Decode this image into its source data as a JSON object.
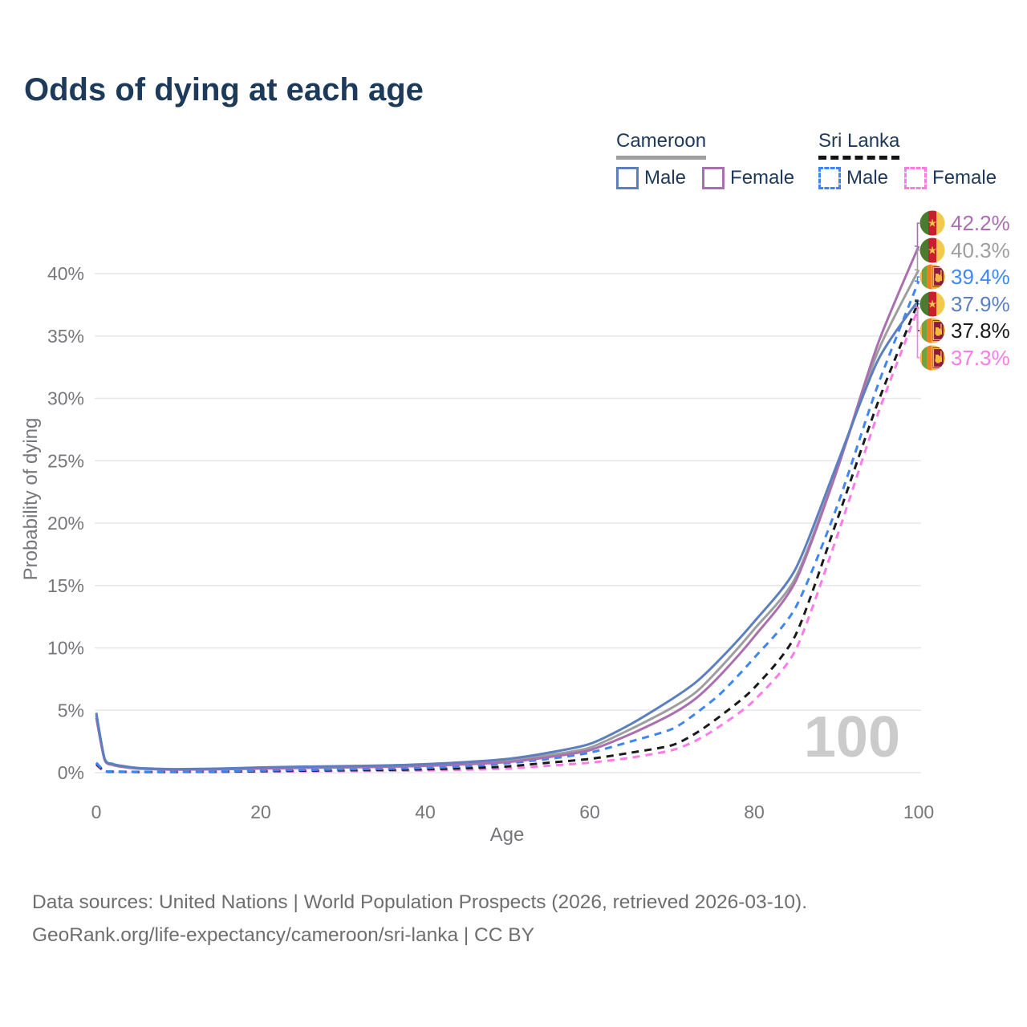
{
  "header": {
    "title": "Odds of dying at each age"
  },
  "legend": {
    "cameroon": {
      "title": "Cameroon",
      "male_label": "Male",
      "female_label": "Female"
    },
    "sri_lanka": {
      "title": "Sri Lanka",
      "male_label": "Male",
      "female_label": "Female"
    }
  },
  "colors": {
    "cameroon_male": "#5b7fbf",
    "cameroon_female": "#a96fae",
    "cameroon_all": "#9e9e9e",
    "sri_lanka_male": "#3f86f5",
    "sri_lanka_female": "#fb7ce6",
    "sri_lanka_all": "#1a1a1a",
    "title_navy": "#1e3a5a",
    "gridline": "#e7e7e9",
    "watermark_gray": "#cbcbcb"
  },
  "chart_data": {
    "type": "line",
    "title": "Odds of dying at each age",
    "xlabel": "Age",
    "ylabel": "Probability of dying",
    "xlim": [
      0,
      100
    ],
    "ylim": [
      0,
      42.5
    ],
    "grid": "horizontal-only",
    "legend_position": "top-right",
    "watermark": "100",
    "x_ticks": [
      {
        "value": 0,
        "label": "0"
      },
      {
        "value": 20,
        "label": "20"
      },
      {
        "value": 40,
        "label": "40"
      },
      {
        "value": 60,
        "label": "60"
      },
      {
        "value": 80,
        "label": "80"
      },
      {
        "value": 100,
        "label": "100"
      }
    ],
    "y_ticks": [
      {
        "value": 0,
        "label": "0%"
      },
      {
        "value": 5,
        "label": "5%"
      },
      {
        "value": 10,
        "label": "10%"
      },
      {
        "value": 15,
        "label": "15%"
      },
      {
        "value": 20,
        "label": "20%"
      },
      {
        "value": 25,
        "label": "25%"
      },
      {
        "value": 30,
        "label": "30%"
      },
      {
        "value": 35,
        "label": "35%"
      },
      {
        "value": 40,
        "label": "40%"
      }
    ],
    "series": [
      {
        "id": "sri_lanka_female",
        "name": "Sri Lanka Female",
        "country": "sri-lanka",
        "sex": "female",
        "line": "dashed",
        "color": "#fb7ce6",
        "end_label": "37.3%",
        "end_value": 37.3,
        "points": [
          [
            0,
            0.6
          ],
          [
            1,
            0.1
          ],
          [
            2,
            0.07
          ],
          [
            3,
            0.06
          ],
          [
            5,
            0.05
          ],
          [
            8,
            0.05
          ],
          [
            10,
            0.05
          ],
          [
            15,
            0.06
          ],
          [
            20,
            0.08
          ],
          [
            25,
            0.1
          ],
          [
            30,
            0.12
          ],
          [
            35,
            0.15
          ],
          [
            40,
            0.18
          ],
          [
            45,
            0.24
          ],
          [
            50,
            0.33
          ],
          [
            55,
            0.55
          ],
          [
            60,
            0.8
          ],
          [
            65,
            1.2
          ],
          [
            70,
            1.8
          ],
          [
            73,
            2.6
          ],
          [
            76,
            3.8
          ],
          [
            80,
            5.8
          ],
          [
            85,
            9.8
          ],
          [
            90,
            18.8
          ],
          [
            95,
            28.7
          ],
          [
            100,
            37.3
          ]
        ]
      },
      {
        "id": "sri_lanka_all",
        "name": "Sri Lanka (both sexes)",
        "country": "sri-lanka",
        "sex": "all",
        "line": "dashed",
        "color": "#1a1a1a",
        "end_label": "37.8%",
        "end_value": 37.8,
        "points": [
          [
            0,
            0.7
          ],
          [
            1,
            0.12
          ],
          [
            2,
            0.08
          ],
          [
            3,
            0.07
          ],
          [
            5,
            0.06
          ],
          [
            8,
            0.06
          ],
          [
            10,
            0.06
          ],
          [
            15,
            0.08
          ],
          [
            20,
            0.12
          ],
          [
            25,
            0.16
          ],
          [
            30,
            0.19
          ],
          [
            35,
            0.22
          ],
          [
            40,
            0.27
          ],
          [
            45,
            0.36
          ],
          [
            50,
            0.5
          ],
          [
            55,
            0.8
          ],
          [
            60,
            1.1
          ],
          [
            65,
            1.6
          ],
          [
            70,
            2.2
          ],
          [
            73,
            3.2
          ],
          [
            76,
            4.6
          ],
          [
            80,
            6.8
          ],
          [
            85,
            11.0
          ],
          [
            90,
            20.1
          ],
          [
            95,
            29.6
          ],
          [
            100,
            37.8
          ]
        ]
      },
      {
        "id": "sri_lanka_male",
        "name": "Sri Lanka Male",
        "country": "sri-lanka",
        "sex": "male",
        "line": "dashed",
        "color": "#3f86f5",
        "end_label": "39.4%",
        "end_value": 39.4,
        "points": [
          [
            0,
            0.8
          ],
          [
            1,
            0.15
          ],
          [
            2,
            0.1
          ],
          [
            3,
            0.08
          ],
          [
            5,
            0.07
          ],
          [
            8,
            0.07
          ],
          [
            10,
            0.07
          ],
          [
            15,
            0.1
          ],
          [
            20,
            0.17
          ],
          [
            25,
            0.22
          ],
          [
            30,
            0.26
          ],
          [
            35,
            0.3
          ],
          [
            40,
            0.38
          ],
          [
            45,
            0.52
          ],
          [
            50,
            0.75
          ],
          [
            55,
            1.1
          ],
          [
            60,
            1.6
          ],
          [
            65,
            2.5
          ],
          [
            70,
            3.5
          ],
          [
            73,
            4.8
          ],
          [
            76,
            6.4
          ],
          [
            80,
            9.2
          ],
          [
            85,
            13.2
          ],
          [
            90,
            21.2
          ],
          [
            95,
            31.0
          ],
          [
            100,
            39.4
          ]
        ]
      },
      {
        "id": "cameroon_all",
        "name": "Cameroon (both sexes)",
        "country": "cameroon",
        "sex": "all",
        "line": "solid",
        "color": "#9e9e9e",
        "end_label": "40.3%",
        "end_value": 40.3,
        "points": [
          [
            0,
            4.6
          ],
          [
            1,
            1.1
          ],
          [
            2,
            0.65
          ],
          [
            3,
            0.5
          ],
          [
            5,
            0.35
          ],
          [
            8,
            0.28
          ],
          [
            10,
            0.26
          ],
          [
            15,
            0.3
          ],
          [
            20,
            0.38
          ],
          [
            25,
            0.43
          ],
          [
            30,
            0.47
          ],
          [
            35,
            0.52
          ],
          [
            40,
            0.6
          ],
          [
            45,
            0.75
          ],
          [
            50,
            0.95
          ],
          [
            55,
            1.4
          ],
          [
            60,
            2.0
          ],
          [
            65,
            3.5
          ],
          [
            70,
            5.2
          ],
          [
            73,
            6.5
          ],
          [
            76,
            8.5
          ],
          [
            80,
            11.5
          ],
          [
            85,
            15.6
          ],
          [
            90,
            24.2
          ],
          [
            95,
            33.7
          ],
          [
            100,
            40.3
          ]
        ]
      },
      {
        "id": "cameroon_female",
        "name": "Cameroon Female",
        "country": "cameroon",
        "sex": "female",
        "line": "solid",
        "color": "#a96fae",
        "end_label": "42.2%",
        "end_value": 42.2,
        "points": [
          [
            0,
            4.4
          ],
          [
            1,
            1.05
          ],
          [
            2,
            0.62
          ],
          [
            3,
            0.48
          ],
          [
            5,
            0.33
          ],
          [
            8,
            0.26
          ],
          [
            10,
            0.24
          ],
          [
            15,
            0.27
          ],
          [
            20,
            0.33
          ],
          [
            25,
            0.38
          ],
          [
            30,
            0.42
          ],
          [
            35,
            0.47
          ],
          [
            40,
            0.54
          ],
          [
            45,
            0.67
          ],
          [
            50,
            0.85
          ],
          [
            55,
            1.25
          ],
          [
            60,
            1.8
          ],
          [
            65,
            3.1
          ],
          [
            70,
            4.7
          ],
          [
            73,
            6.0
          ],
          [
            76,
            7.9
          ],
          [
            80,
            10.9
          ],
          [
            85,
            15.3
          ],
          [
            90,
            24.1
          ],
          [
            95,
            34.3
          ],
          [
            100,
            42.2
          ]
        ]
      },
      {
        "id": "cameroon_male",
        "name": "Cameroon Male",
        "country": "cameroon",
        "sex": "male",
        "line": "solid",
        "color": "#5b7fbf",
        "end_label": "37.9%",
        "end_value": 37.9,
        "points": [
          [
            0,
            4.8
          ],
          [
            1,
            1.15
          ],
          [
            2,
            0.7
          ],
          [
            3,
            0.55
          ],
          [
            5,
            0.38
          ],
          [
            8,
            0.3
          ],
          [
            10,
            0.28
          ],
          [
            15,
            0.33
          ],
          [
            20,
            0.42
          ],
          [
            25,
            0.48
          ],
          [
            30,
            0.52
          ],
          [
            35,
            0.58
          ],
          [
            40,
            0.68
          ],
          [
            45,
            0.85
          ],
          [
            50,
            1.1
          ],
          [
            55,
            1.6
          ],
          [
            60,
            2.3
          ],
          [
            65,
            3.9
          ],
          [
            70,
            5.9
          ],
          [
            73,
            7.3
          ],
          [
            76,
            9.2
          ],
          [
            80,
            12.1
          ],
          [
            85,
            16.3
          ],
          [
            90,
            24.6
          ],
          [
            95,
            33.0
          ],
          [
            100,
            37.9
          ]
        ]
      }
    ]
  },
  "footer": {
    "line1": "Data sources: United Nations | World Population Prospects (2026, retrieved 2026-03-10).",
    "line2": "GeoRank.org/life-expectancy/cameroon/sri-lanka | CC BY"
  }
}
